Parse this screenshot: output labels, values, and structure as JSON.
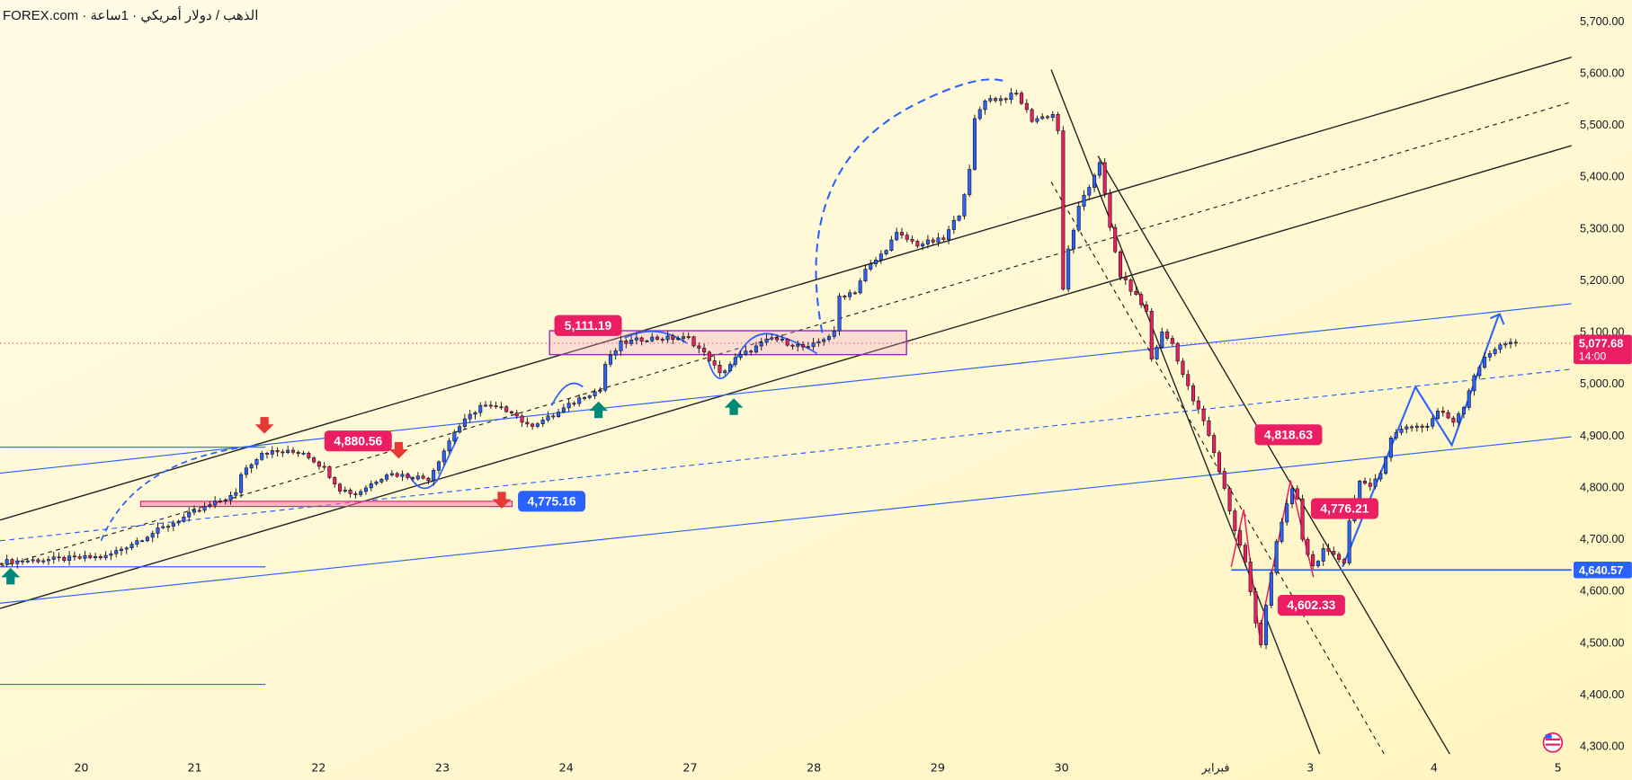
{
  "header": {
    "title": "FOREX.com · الذهب / دولار أمريكي · 1ساعة"
  },
  "chart_data": {
    "type": "candlestick",
    "interval": "1 hour",
    "ylim": [
      4270,
      5730
    ],
    "y_ticks": [
      "5,700.00",
      "5,600.00",
      "5,500.00",
      "5,400.00",
      "5,300.00",
      "5,200.00",
      "5,100.00",
      "5,000.00",
      "4,900.00",
      "4,800.00",
      "4,700.00",
      "4,600.00",
      "4,500.00",
      "4,400.00",
      "4,300.00"
    ],
    "y_tick_values": [
      5700,
      5600,
      5500,
      5400,
      5300,
      5200,
      5100,
      5000,
      4900,
      4800,
      4700,
      4600,
      4500,
      4400,
      4300
    ],
    "x_ticks": [
      "20",
      "21",
      "22",
      "23",
      "24",
      "27",
      "28",
      "29",
      "30",
      "فبراير",
      "3",
      "4",
      "5"
    ],
    "price_path": [
      [
        0,
        4655
      ],
      [
        20,
        4665
      ],
      [
        26,
        4696
      ],
      [
        36,
        4746
      ],
      [
        45,
        4786
      ],
      [
        46,
        4826
      ],
      [
        50,
        4867
      ],
      [
        58,
        4867
      ],
      [
        62,
        4836
      ],
      [
        65,
        4796
      ],
      [
        68,
        4786
      ],
      [
        74,
        4826
      ],
      [
        82,
        4816
      ],
      [
        87,
        4907
      ],
      [
        92,
        4957
      ],
      [
        98,
        4947
      ],
      [
        101,
        4917
      ],
      [
        106,
        4937
      ],
      [
        112,
        4977
      ],
      [
        115,
        4987
      ],
      [
        116,
        5037
      ],
      [
        119,
        5077
      ],
      [
        124,
        5087
      ],
      [
        132,
        5087
      ],
      [
        136,
        5047
      ],
      [
        138,
        5017
      ],
      [
        141,
        5047
      ],
      [
        148,
        5087
      ],
      [
        155,
        5067
      ],
      [
        158,
        5087
      ],
      [
        160,
        5097
      ],
      [
        161,
        5168
      ],
      [
        164,
        5178
      ],
      [
        166,
        5218
      ],
      [
        169,
        5248
      ],
      [
        172,
        5288
      ],
      [
        176,
        5268
      ],
      [
        181,
        5278
      ],
      [
        184,
        5328
      ],
      [
        186,
        5409
      ],
      [
        187,
        5509
      ],
      [
        189,
        5549
      ],
      [
        192,
        5549
      ],
      [
        195,
        5559
      ],
      [
        198,
        5509
      ],
      [
        202,
        5519
      ],
      [
        203,
        5489
      ],
      [
        204,
        5178
      ],
      [
        205,
        5258
      ],
      [
        207,
        5338
      ],
      [
        209,
        5379
      ],
      [
        211,
        5429
      ],
      [
        213,
        5298
      ],
      [
        215,
        5208
      ],
      [
        218,
        5168
      ],
      [
        220,
        5138
      ],
      [
        221,
        5047
      ],
      [
        223,
        5097
      ],
      [
        225,
        5077
      ],
      [
        227,
        5017
      ],
      [
        229,
        4967
      ],
      [
        231,
        4927
      ],
      [
        233,
        4867
      ],
      [
        235,
        4796
      ],
      [
        237,
        4716
      ],
      [
        239,
        4656
      ],
      [
        241,
        4535
      ],
      [
        242,
        4495
      ],
      [
        243,
        4575
      ],
      [
        245,
        4696
      ],
      [
        248,
        4796
      ],
      [
        249,
        4776
      ],
      [
        250,
        4696
      ],
      [
        252,
        4646
      ],
      [
        254,
        4676
      ],
      [
        256,
        4666
      ],
      [
        258,
        4656
      ],
      [
        259,
        4736
      ],
      [
        261,
        4816
      ],
      [
        263,
        4796
      ],
      [
        265,
        4826
      ],
      [
        267,
        4897
      ],
      [
        270,
        4917
      ],
      [
        274,
        4917
      ],
      [
        276,
        4947
      ],
      [
        279,
        4927
      ],
      [
        281,
        4957
      ],
      [
        283,
        5017
      ],
      [
        285,
        5047
      ],
      [
        288,
        5077
      ],
      [
        291,
        5077.68
      ]
    ],
    "last_price": {
      "value": "5,077.68",
      "countdown": "14:00"
    },
    "level_label": "4,640.57",
    "annotations": [
      "5,111.19",
      "4,880.56",
      "4,775.16",
      "4,818.63",
      "4,776.21",
      "4,602.33"
    ],
    "colors": {
      "up": "#2962ff",
      "down": "#e91e63",
      "background": "#fff8cf",
      "zone": "#9c27b0",
      "level": "#2962ff"
    }
  }
}
